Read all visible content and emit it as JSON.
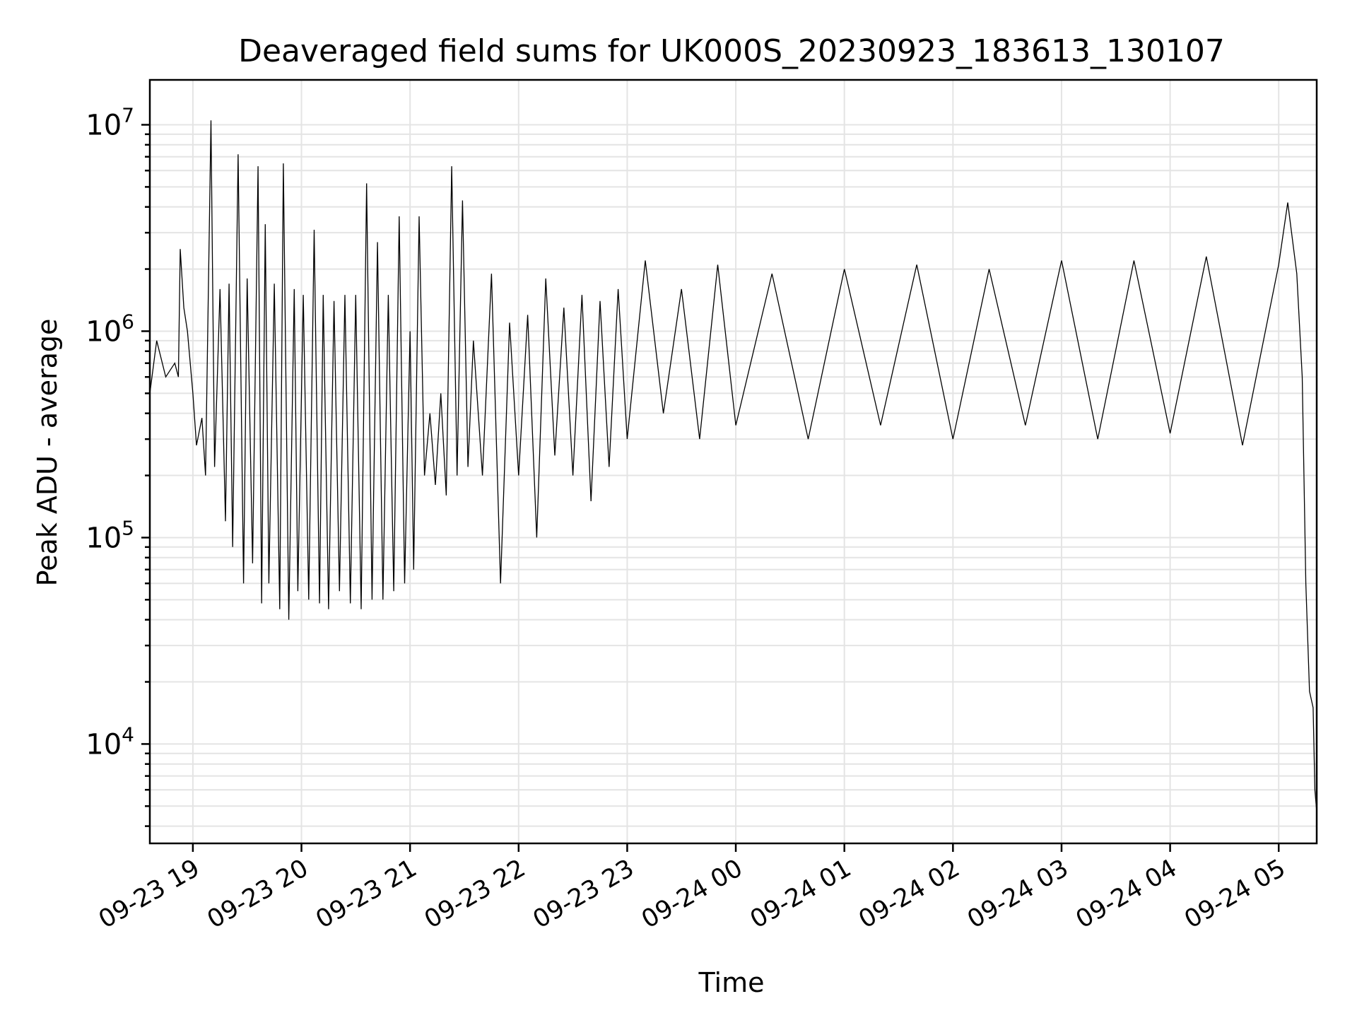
{
  "chart_data": {
    "type": "line",
    "title": "Deaveraged field sums for UK000S_20230923_183613_130107",
    "xlabel": "Time",
    "ylabel": "Peak ADU - average",
    "yscale": "log",
    "ylim": [
      3300,
      16500000
    ],
    "xlim": [
      "2023-09-23 18:36:13",
      "2023-09-24 05:21:00"
    ],
    "grid": true,
    "grid_minor": true,
    "x_ticks": [
      {
        "label": "09-23 19",
        "value": "2023-09-23 19:00"
      },
      {
        "label": "09-23 20",
        "value": "2023-09-23 20:00"
      },
      {
        "label": "09-23 21",
        "value": "2023-09-23 21:00"
      },
      {
        "label": "09-23 22",
        "value": "2023-09-23 22:00"
      },
      {
        "label": "09-23 23",
        "value": "2023-09-23 23:00"
      },
      {
        "label": "09-24 00",
        "value": "2023-09-24 00:00"
      },
      {
        "label": "09-24 01",
        "value": "2023-09-24 01:00"
      },
      {
        "label": "09-24 02",
        "value": "2023-09-24 02:00"
      },
      {
        "label": "09-24 03",
        "value": "2023-09-24 03:00"
      },
      {
        "label": "09-24 04",
        "value": "2023-09-24 04:00"
      },
      {
        "label": "09-24 05",
        "value": "2023-09-24 05:00"
      }
    ],
    "y_ticks": [
      {
        "base": "10",
        "exp": "4",
        "value": 10000
      },
      {
        "base": "10",
        "exp": "5",
        "value": 100000
      },
      {
        "base": "10",
        "exp": "6",
        "value": 1000000
      },
      {
        "base": "10",
        "exp": "7",
        "value": 10000000
      }
    ],
    "series": [
      {
        "color": "#000000",
        "x": [
          "2023-09-23 18:36",
          "2023-09-23 18:40",
          "2023-09-23 18:45",
          "2023-09-23 18:50",
          "2023-09-23 18:52",
          "2023-09-23 18:53",
          "2023-09-23 18:55",
          "2023-09-23 18:57",
          "2023-09-23 19:00",
          "2023-09-23 19:02",
          "2023-09-23 19:05",
          "2023-09-23 19:07",
          "2023-09-23 19:10",
          "2023-09-23 19:12",
          "2023-09-23 19:15",
          "2023-09-23 19:18",
          "2023-09-23 19:20",
          "2023-09-23 19:22",
          "2023-09-23 19:25",
          "2023-09-23 19:28",
          "2023-09-23 19:30",
          "2023-09-23 19:33",
          "2023-09-23 19:36",
          "2023-09-23 19:38",
          "2023-09-23 19:40",
          "2023-09-23 19:42",
          "2023-09-23 19:45",
          "2023-09-23 19:48",
          "2023-09-23 19:50",
          "2023-09-23 19:53",
          "2023-09-23 19:56",
          "2023-09-23 19:58",
          "2023-09-23 20:01",
          "2023-09-23 20:04",
          "2023-09-23 20:07",
          "2023-09-23 20:10",
          "2023-09-23 20:12",
          "2023-09-23 20:15",
          "2023-09-23 20:18",
          "2023-09-23 20:21",
          "2023-09-23 20:24",
          "2023-09-23 20:27",
          "2023-09-23 20:30",
          "2023-09-23 20:33",
          "2023-09-23 20:36",
          "2023-09-23 20:39",
          "2023-09-23 20:42",
          "2023-09-23 20:45",
          "2023-09-23 20:48",
          "2023-09-23 20:51",
          "2023-09-23 20:54",
          "2023-09-23 20:57",
          "2023-09-23 21:00",
          "2023-09-23 21:02",
          "2023-09-23 21:05",
          "2023-09-23 21:08",
          "2023-09-23 21:11",
          "2023-09-23 21:14",
          "2023-09-23 21:17",
          "2023-09-23 21:20",
          "2023-09-23 21:23",
          "2023-09-23 21:26",
          "2023-09-23 21:29",
          "2023-09-23 21:32",
          "2023-09-23 21:35",
          "2023-09-23 21:40",
          "2023-09-23 21:45",
          "2023-09-23 21:50",
          "2023-09-23 21:55",
          "2023-09-23 22:00",
          "2023-09-23 22:05",
          "2023-09-23 22:10",
          "2023-09-23 22:15",
          "2023-09-23 22:20",
          "2023-09-23 22:25",
          "2023-09-23 22:30",
          "2023-09-23 22:35",
          "2023-09-23 22:40",
          "2023-09-23 22:45",
          "2023-09-23 22:50",
          "2023-09-23 22:55",
          "2023-09-23 23:00",
          "2023-09-23 23:10",
          "2023-09-23 23:20",
          "2023-09-23 23:30",
          "2023-09-23 23:40",
          "2023-09-23 23:50",
          "2023-09-24 00:00",
          "2023-09-24 00:20",
          "2023-09-24 00:40",
          "2023-09-24 01:00",
          "2023-09-24 01:20",
          "2023-09-24 01:40",
          "2023-09-24 02:00",
          "2023-09-24 02:20",
          "2023-09-24 02:40",
          "2023-09-24 03:00",
          "2023-09-24 03:20",
          "2023-09-24 03:40",
          "2023-09-24 04:00",
          "2023-09-24 04:20",
          "2023-09-24 04:40",
          "2023-09-24 05:00",
          "2023-09-24 05:05",
          "2023-09-24 05:10",
          "2023-09-24 05:13",
          "2023-09-24 05:15",
          "2023-09-24 05:17",
          "2023-09-24 05:19",
          "2023-09-24 05:20",
          "2023-09-24 05:21"
        ],
        "y": [
          500000,
          900000,
          600000,
          700000,
          600000,
          2500000,
          1300000,
          1000000,
          500000,
          280000,
          380000,
          200000,
          10500000,
          220000,
          1600000,
          120000,
          1700000,
          90000,
          7200000,
          60000,
          1800000,
          75000,
          6300000,
          48000,
          3300000,
          60000,
          1700000,
          45000,
          6500000,
          40000,
          1600000,
          55000,
          1500000,
          50000,
          3100000,
          48000,
          1500000,
          45000,
          1400000,
          55000,
          1500000,
          48000,
          1500000,
          45000,
          5200000,
          50000,
          2700000,
          50000,
          1500000,
          55000,
          3600000,
          60000,
          1000000,
          70000,
          3600000,
          200000,
          400000,
          180000,
          500000,
          160000,
          6300000,
          200000,
          4300000,
          220000,
          900000,
          200000,
          1900000,
          60000,
          1100000,
          200000,
          1200000,
          100000,
          1800000,
          250000,
          1300000,
          200000,
          1500000,
          150000,
          1400000,
          220000,
          1600000,
          300000,
          2200000,
          400000,
          1600000,
          300000,
          2100000,
          350000,
          1900000,
          300000,
          2000000,
          350000,
          2100000,
          300000,
          2000000,
          350000,
          2200000,
          300000,
          2200000,
          320000,
          2300000,
          280000,
          2100000,
          4200000,
          1900000,
          600000,
          60000,
          18000,
          15000,
          6000,
          4700
        ]
      }
    ]
  }
}
